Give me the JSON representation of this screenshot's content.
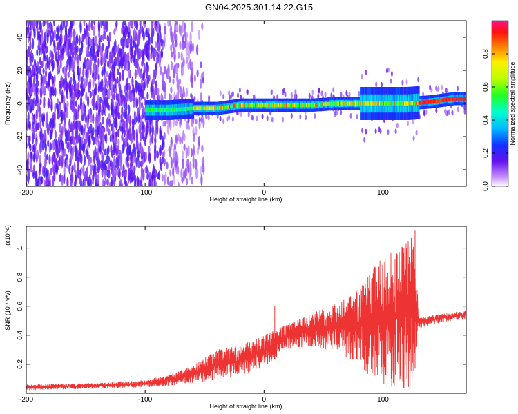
{
  "title": "GN04.2025.301.14.22.G15",
  "chart_data": [
    {
      "type": "heatmap",
      "xlabel": "Height of straight line (km)",
      "ylabel": "Frequency (Hz)",
      "xlim": [
        -200,
        170
      ],
      "ylim": [
        -50,
        50
      ],
      "x_ticks": [
        -200,
        -100,
        0,
        100
      ],
      "y_ticks": [
        -40,
        -20,
        0,
        20,
        40
      ],
      "colorbar": {
        "label": "Normalized spectral amplitude",
        "range": [
          0,
          1
        ],
        "ticks": [
          0.0,
          0.2,
          0.4,
          0.6,
          0.8
        ]
      },
      "ridge_center_hz": [
        [
          -100,
          -4
        ],
        [
          -80,
          -4
        ],
        [
          -60,
          -3
        ],
        [
          -40,
          -3
        ],
        [
          -20,
          -1
        ],
        [
          0,
          -1
        ],
        [
          20,
          -1
        ],
        [
          40,
          -1
        ],
        [
          60,
          0
        ],
        [
          80,
          0
        ],
        [
          100,
          0
        ],
        [
          120,
          0
        ],
        [
          140,
          1
        ],
        [
          160,
          3
        ],
        [
          170,
          3
        ]
      ],
      "noise_region_km": [
        -200,
        -60
      ],
      "spread_region_km": [
        80,
        130
      ]
    },
    {
      "type": "line",
      "xlabel": "Height of straight line (km)",
      "ylabel": "SNR (10 * v/v)",
      "y_multiplier": "(x10^4)",
      "xlim": [
        -200,
        170
      ],
      "ylim": [
        0,
        1.15
      ],
      "x_ticks": [
        -200,
        -100,
        0,
        100
      ],
      "y_ticks": [
        0.2,
        0.4,
        0.6,
        0.8,
        1.0
      ],
      "color": "#ee3333",
      "envelope": [
        {
          "x": -200,
          "lo": 0.02,
          "hi": 0.06
        },
        {
          "x": -150,
          "lo": 0.03,
          "hi": 0.07
        },
        {
          "x": -100,
          "lo": 0.04,
          "hi": 0.09
        },
        {
          "x": -80,
          "lo": 0.05,
          "hi": 0.13
        },
        {
          "x": -60,
          "lo": 0.07,
          "hi": 0.19
        },
        {
          "x": -40,
          "lo": 0.09,
          "hi": 0.3
        },
        {
          "x": -20,
          "lo": 0.12,
          "hi": 0.33
        },
        {
          "x": 0,
          "lo": 0.18,
          "hi": 0.4
        },
        {
          "x": 20,
          "lo": 0.3,
          "hi": 0.48
        },
        {
          "x": 40,
          "lo": 0.32,
          "hi": 0.55
        },
        {
          "x": 60,
          "lo": 0.28,
          "hi": 0.62
        },
        {
          "x": 80,
          "lo": 0.2,
          "hi": 0.72
        },
        {
          "x": 95,
          "lo": 0.05,
          "hi": 0.9
        },
        {
          "x": 110,
          "lo": 0.03,
          "hi": 1.02
        },
        {
          "x": 125,
          "lo": 0.03,
          "hi": 1.08
        },
        {
          "x": 131,
          "lo": 0.45,
          "hi": 0.52
        },
        {
          "x": 150,
          "lo": 0.49,
          "hi": 0.55
        },
        {
          "x": 170,
          "lo": 0.51,
          "hi": 0.57
        }
      ],
      "spikes": [
        {
          "x": 9,
          "y": 0.6
        },
        {
          "x": 100,
          "y": 1.08
        },
        {
          "x": 127,
          "y": 1.12
        }
      ]
    }
  ]
}
